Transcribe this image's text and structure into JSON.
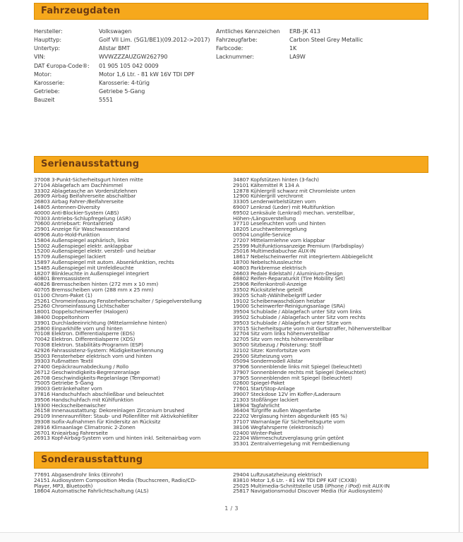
{
  "page": {
    "indicator": "1 / 3"
  },
  "colors": {
    "section_bar_bg": "#F6A81C",
    "section_bar_border": "#D98E06",
    "section_bar_text": "#6B3A13",
    "body_text": "#3A3A3A"
  },
  "vehicle_data": {
    "title": "Fahrzeugdaten",
    "left": [
      {
        "label": "Hersteller:",
        "value": "Volkswagen"
      },
      {
        "label": "Haupttyp:",
        "value": "Golf VII Lim. (5G1/BE1)(09.2012->2017)"
      },
      {
        "label": "Untertyp:",
        "value": "Allstar BMT"
      },
      {
        "label": "VIN:",
        "value": "WVWZZZAUZGW262790"
      },
      {
        "label": "DAT €uropa-Code®:",
        "value": "01 905 105 042 0009"
      },
      {
        "label": "Motor:",
        "value": "Motor 1,6 Ltr. - 81 kW 16V TDI DPF"
      },
      {
        "label": "Karosserie:",
        "value": "Karosserie: 4-türig"
      },
      {
        "label": "Getriebe:",
        "value": "Getriebe 5-Gang"
      },
      {
        "label": "Bauzeit",
        "value": "5551"
      }
    ],
    "right": [
      {
        "label": "Amtliches Kennzeichen",
        "value": "ERB-JK 413"
      },
      {
        "label": "Fahrzeugfarbe:",
        "value": "Carbon Steel Grey Metallic"
      },
      {
        "label": "Farbcode:",
        "value": "1K"
      },
      {
        "label": "Lacknummer:",
        "value": "LA9W"
      }
    ]
  },
  "standard_equipment": {
    "title": "Serienausstattung",
    "left": [
      "37008 3-Punkt-Sicherheitsgurt hinten mitte",
      "27104 Ablagefach am Dachhimmel",
      "33302 Ablagetasche an Vordersitzlehnen",
      "26909 Airbag Beifahrerseite abschaltbar",
      "26803 Airbag Fahrer-/Beifahrerseite",
      "14805 Antennen-Diversity",
      "40000 Anti-Blockier-System (ABS)",
      "70303 Antriebs-Schlupfregelung (ASR)",
      "70600 Antriebsart: Frontantrieb",
      "25901 Anzeige für Waschwasserstand",
      "40906 Auto-Hold-Funktion",
      "15804 Außenspiegel asphärisch, links",
      "15002 Außenspiegel elektr. anklappbar",
      "15200 Außenspiegel elektr. verstell- und heizbar",
      "15709 Außenspiegel lackiert",
      "15897 Außenspiegel mit autom. Absenkfunktion, rechts",
      "15485 Außenspiegel mit Umfeldleuchte",
      "18207 Blinkleuchte in Außenspiegel integriert",
      "40801 Bremsassistent",
      "40826 Bremsscheiben hinten (272 mm x 10 mm)",
      "40705 Bremsscheiben vorn (288 mm x 25 mm)",
      "01100 Chrom-Paket (1)",
      "25261 Chromeinfassung Fensterheberschalter / Spiegelverstellung",
      "25260 Chromeinfassung Lichtschalter",
      "18001 Doppelscheinwerfer (Halogen)",
      "38400 Doppeltonhorn",
      "33901 Durchladeeinrichtung (Mittelarmlehne hinten)",
      "25800 Einparkhilfe vorn und hinten",
      "70108 Elektron. Differentialsperre (EDS)",
      "70042 Elektron. Differentialsperre (XDS)",
      "70308 Elektron. Stabilitäts-Programm (ESP)",
      "42926 Fahrassistenz-System: Müdigkeitserkennung",
      "35003 Fensterheber elektrisch vorn und hinten",
      "39303 Fußmatten Textil",
      "27400 Gepäckraumabdeckung / Rollo",
      "26712 Geschwindigkeits-Begrenzeranlage",
      "26708 Geschwindigkeits-Regelanlage (Tempomat)",
      "75005 Getriebe 5-Gang",
      "39003 Getränkehalter vorn",
      "37816 Handschuhfach abschließbar und beleuchtet",
      "39506 Handschuhfach mit Kühlfunktion",
      "19300 Heckscheibenwischer",
      "26158 Innenausstattung: Dekoreinlagen Zirconium brushed",
      "29109 Innenraumfilter: Staub- und Pollenfilter mit Aktivkohlefilter",
      "39308 Isofix-Aufnahmen für Kindersitz an Rücksitz",
      "28916 Klimaanlage Climatronic 2-Zonen",
      "26701 Knieairbag Fahrerseite",
      "26913 Kopf-Airbag-System vorn und hinten inkl. Seitenairbag vorn"
    ],
    "right": [
      "34807 Kopfstützen hinten (3-fach)",
      "29101 Kältemittel R 134 A",
      "12878 Kühlergrill schwarz mit Chromleiste unten",
      "12900 Kühlergrill verchromt",
      "33305 Lendenwirbelstützen vorn",
      "69007 Lenkrad (Leder) mit Multifunktion",
      "69502 Lenksäule (Lenkrad) mechan. verstellbar, Höhen-/Längsverstellung",
      "37710 Leseleuchten vorn und hinten",
      "18205 Leuchtweitenregelung",
      "00504 Longlife-Service",
      "27207 Mittelarmlehne vorn klappbar",
      "25599 Multifunktionsanzeige Premium (Farbdisplay)",
      "25016 Multimediabuchse AUX-IN",
      "18617 Nebelscheinwerfer mit integriertem Abbiegelicht",
      "18700 Nebelschlussleuchte",
      "40803 Parkbremse elektrisch",
      "26603 Pedale Edelstahl / Aluminium-Design",
      "68802 Reifen-Reparaturkit (Tire Mobility Set)",
      "25906 Reifenkontroll-Anzeige",
      "33502 Rücksitzlehne geteilt",
      "39205 Schalt-/Wählhebelgriff Leder",
      "19102 Scheibenwaschdüsen heizbar",
      "19000 Scheinwerfer-Reinigungsanlage (SRA)",
      "39504 Schublade / Ablagefach unter Sitz vorn links",
      "39502 Schublade / Ablagefach unter Sitz vorn rechts",
      "39503 Schublade / Ablagefach unter Sitze vorn",
      "37015 Sicherheitsgurte vorn mit Gurtstraffer, höhenverstellbar",
      "32704 Sitz vorn links höhenverstellbar",
      "32705 Sitz vorn rechts höhenverstellbar",
      "30500 Sitzbezug / Polsterung: Stoff",
      "32102 Sitze: Komfortsitze vorn",
      "29500 Sitzheizung vorn",
      "05094 Sondermodell Allstar",
      "37906 Sonnenblende links mit Spiegel (beleuchtet)",
      "37907 Sonnenblende rechts mit Spiegel (beleuchtet)",
      "37905 Sonnenblenden mit Spiegel (beleuchtet)",
      "02600 Spiegel-Paket",
      "77601 Start/Stop-Anlage",
      "39007 Steckdose 12V im Koffer-/Laderaum",
      "21303 Stoßfänger lackiert",
      "18904 Tagfahrlicht",
      "36404 Türgriffe außen Wagenfarbe",
      "22202 Verglasung hinten abgedunkelt (65 %)",
      "37107 Warnanlage für Sicherheitsgurte vorn",
      "38106 Wegfahrsperre (elektronisch)",
      "02400 Winter-Paket",
      "22304 Wärmeschutzverglasung grün getönt",
      "35301 Zentralverriegelung mit Fernbedienung"
    ]
  },
  "optional_equipment": {
    "title": "Sonderausstattung",
    "left": [
      "77691 Abgasendrohr links (Einrohr)",
      "24151 Audiosystem Composition Media (Touchscreen, Radio/CD-Player, MP3, Bluetooth)",
      "18604 Automatische Fahrlichtschaltung (ALS)"
    ],
    "right": [
      "29404 Luftzusatzheizung elektrisch",
      "83810 Motor 1,6 Ltr. - 81 kW TDI DPF KAT (CXXB)",
      "25025 Multimedia-Schnittstelle USB (iPhone / iPod) mit AUX-IN",
      "25817 Navigationsmodul Discover Media (für Audiosystem)"
    ]
  }
}
